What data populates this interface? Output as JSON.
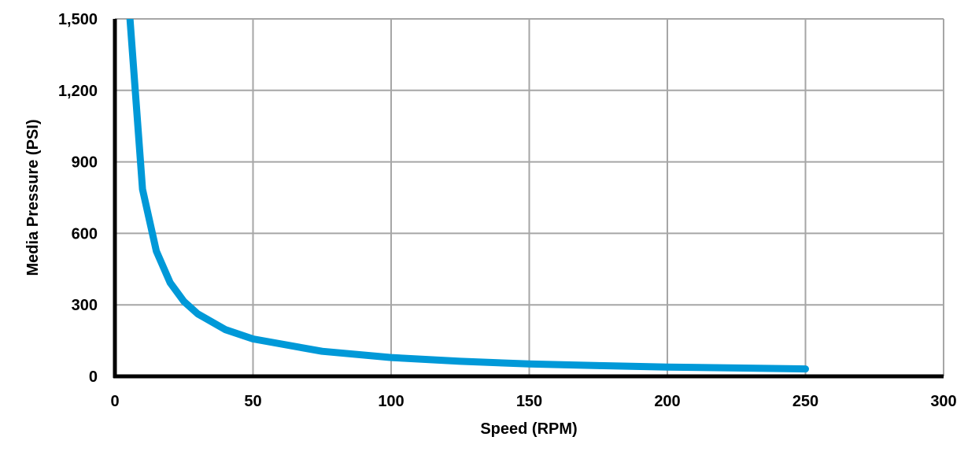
{
  "chart_data": {
    "type": "line",
    "title": "",
    "xlabel": "Speed (RPM)",
    "ylabel": "Media Pressure (PSI)",
    "xlim": [
      0,
      300
    ],
    "ylim": [
      0,
      1500
    ],
    "x_ticks": [
      0,
      50,
      100,
      150,
      200,
      250,
      300
    ],
    "x_tick_labels": [
      "0",
      "50",
      "100",
      "150",
      "200",
      "250",
      "300"
    ],
    "y_ticks": [
      0,
      300,
      600,
      900,
      1200,
      1500
    ],
    "y_tick_labels": [
      "0",
      "300",
      "600",
      "900",
      "1,200",
      "1,500"
    ],
    "grid": true,
    "legend": null,
    "series": [
      {
        "name": "Media Pressure",
        "color": "#0099D8",
        "x": [
          5,
          10,
          15,
          20,
          25,
          30,
          40,
          50,
          75,
          100,
          125,
          150,
          175,
          200,
          225,
          250
        ],
        "values": [
          1570,
          785,
          525,
          393,
          314,
          262,
          196,
          157,
          105,
          79,
          63,
          52,
          45,
          39,
          35,
          31
        ]
      }
    ]
  },
  "colors": {
    "line": "#0099D8",
    "grid": "#A6A6A6",
    "axis": "#000000",
    "background": "#FFFFFF"
  }
}
